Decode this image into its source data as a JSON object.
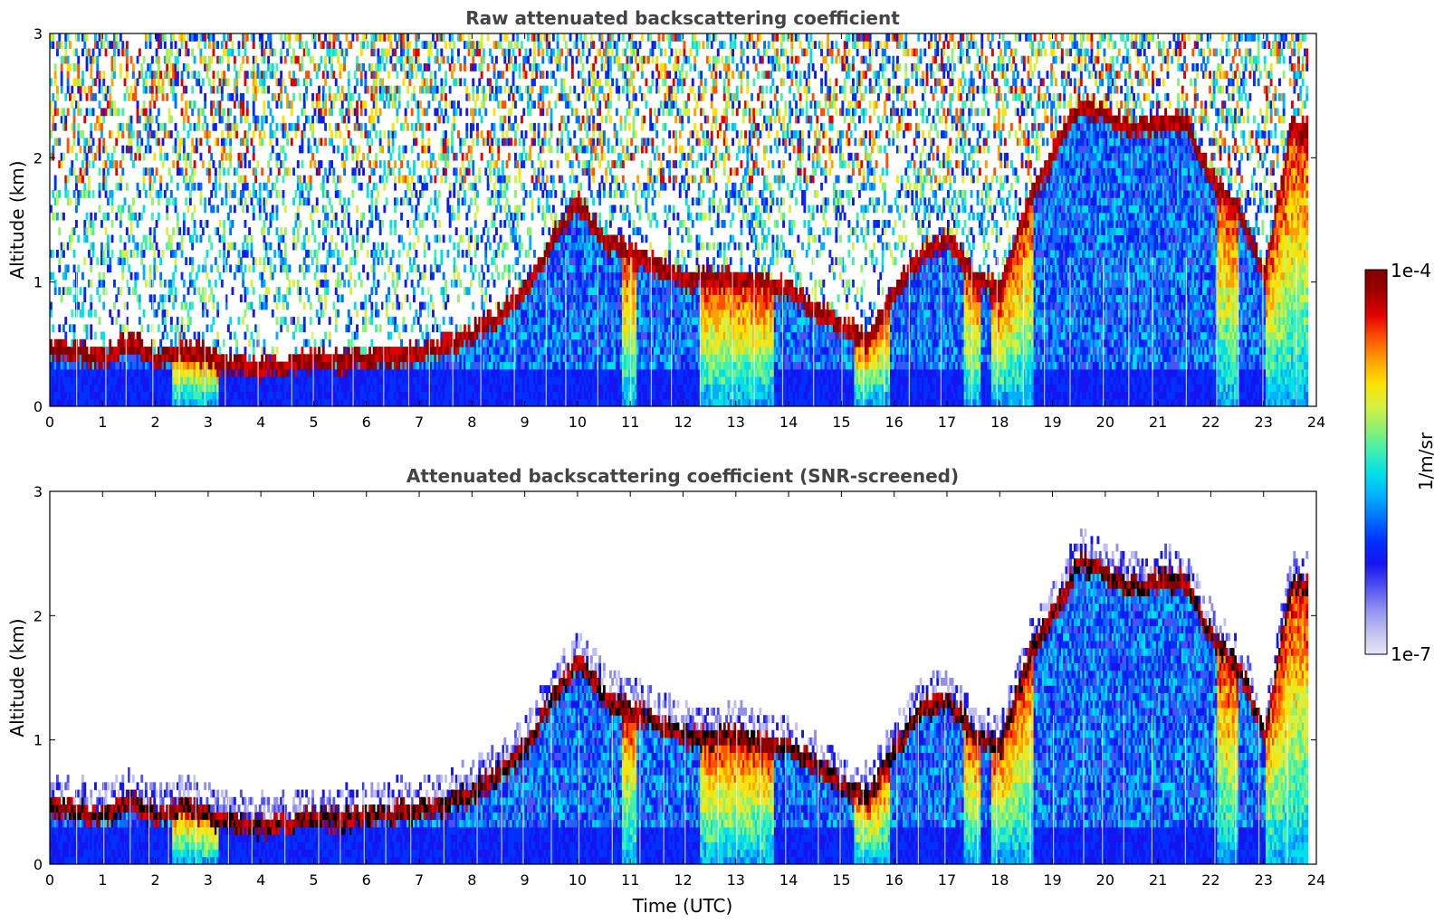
{
  "chart_data": [
    {
      "type": "heatmap",
      "title": "Raw attenuated backscattering coefficient",
      "xlabel": "",
      "ylabel": "Altitude (km)",
      "xlim": [
        0,
        24
      ],
      "ylim": [
        0,
        3
      ],
      "xticks": [
        0,
        1,
        2,
        3,
        4,
        5,
        6,
        7,
        8,
        9,
        10,
        11,
        12,
        13,
        14,
        15,
        16,
        17,
        18,
        19,
        20,
        21,
        22,
        23,
        24
      ],
      "yticks": [
        0,
        1,
        2,
        3
      ],
      "screened": false,
      "layer_height_km": [
        [
          0,
          0.45
        ],
        [
          0.5,
          0.4
        ],
        [
          1,
          0.35
        ],
        [
          1.5,
          0.5
        ],
        [
          2,
          0.35
        ],
        [
          2.5,
          0.45
        ],
        [
          3,
          0.35
        ],
        [
          3.5,
          0.3
        ],
        [
          4,
          0.28
        ],
        [
          4.5,
          0.3
        ],
        [
          5,
          0.35
        ],
        [
          5.5,
          0.33
        ],
        [
          6,
          0.35
        ],
        [
          6.5,
          0.38
        ],
        [
          7,
          0.4
        ],
        [
          7.5,
          0.45
        ],
        [
          8,
          0.55
        ],
        [
          8.5,
          0.7
        ],
        [
          9,
          0.9
        ],
        [
          9.5,
          1.3
        ],
        [
          10,
          1.6
        ],
        [
          10.5,
          1.3
        ],
        [
          11,
          1.2
        ],
        [
          11.5,
          1.1
        ],
        [
          12,
          1.0
        ],
        [
          13,
          1.0
        ],
        [
          14,
          0.9
        ],
        [
          15,
          0.6
        ],
        [
          15.5,
          0.5
        ],
        [
          16,
          0.9
        ],
        [
          16.5,
          1.2
        ],
        [
          17,
          1.3
        ],
        [
          17.5,
          1.0
        ],
        [
          18,
          0.9
        ],
        [
          18.5,
          1.6
        ],
        [
          19,
          2.0
        ],
        [
          19.5,
          2.4
        ],
        [
          20,
          2.3
        ],
        [
          20.5,
          2.2
        ],
        [
          21,
          2.25
        ],
        [
          21.5,
          2.25
        ],
        [
          22,
          1.8
        ],
        [
          22.5,
          1.55
        ],
        [
          23,
          1.0
        ],
        [
          23.5,
          2.2
        ],
        [
          23.8,
          2.2
        ]
      ],
      "shallow_regions_utc": [
        [
          2.3,
          3.2
        ],
        [
          10.8,
          11.1
        ],
        [
          12.3,
          13.7
        ],
        [
          15.2,
          15.9
        ],
        [
          17.3,
          17.6
        ],
        [
          17.8,
          18.6
        ],
        [
          22.1,
          22.5
        ],
        [
          23.0,
          23.8
        ]
      ]
    },
    {
      "type": "heatmap",
      "title": "Attenuated backscattering coefficient (SNR-screened)",
      "xlabel": "Time (UTC)",
      "ylabel": "Altitude (km)",
      "xlim": [
        0,
        24
      ],
      "ylim": [
        0,
        3
      ],
      "xticks": [
        0,
        1,
        2,
        3,
        4,
        5,
        6,
        7,
        8,
        9,
        10,
        11,
        12,
        13,
        14,
        15,
        16,
        17,
        18,
        19,
        20,
        21,
        22,
        23,
        24
      ],
      "yticks": [
        0,
        1,
        2,
        3
      ],
      "screened": true,
      "layer_height_km": [
        [
          0,
          0.45
        ],
        [
          0.5,
          0.4
        ],
        [
          1,
          0.35
        ],
        [
          1.5,
          0.5
        ],
        [
          2,
          0.35
        ],
        [
          2.5,
          0.45
        ],
        [
          3,
          0.35
        ],
        [
          3.5,
          0.3
        ],
        [
          4,
          0.28
        ],
        [
          4.5,
          0.3
        ],
        [
          5,
          0.35
        ],
        [
          5.5,
          0.33
        ],
        [
          6,
          0.35
        ],
        [
          6.5,
          0.38
        ],
        [
          7,
          0.4
        ],
        [
          7.5,
          0.45
        ],
        [
          8,
          0.55
        ],
        [
          8.5,
          0.7
        ],
        [
          9,
          0.9
        ],
        [
          9.5,
          1.3
        ],
        [
          10,
          1.6
        ],
        [
          10.5,
          1.3
        ],
        [
          11,
          1.2
        ],
        [
          11.5,
          1.1
        ],
        [
          12,
          1.0
        ],
        [
          13,
          1.0
        ],
        [
          14,
          0.9
        ],
        [
          15,
          0.6
        ],
        [
          15.5,
          0.5
        ],
        [
          16,
          0.9
        ],
        [
          16.5,
          1.2
        ],
        [
          17,
          1.3
        ],
        [
          17.5,
          1.0
        ],
        [
          18,
          0.9
        ],
        [
          18.5,
          1.6
        ],
        [
          19,
          2.0
        ],
        [
          19.5,
          2.4
        ],
        [
          20,
          2.3
        ],
        [
          20.5,
          2.2
        ],
        [
          21,
          2.25
        ],
        [
          21.5,
          2.25
        ],
        [
          22,
          1.8
        ],
        [
          22.5,
          1.55
        ],
        [
          23,
          1.0
        ],
        [
          23.5,
          2.2
        ],
        [
          23.8,
          2.2
        ]
      ],
      "shallow_regions_utc": [
        [
          2.3,
          3.2
        ],
        [
          10.8,
          11.1
        ],
        [
          12.3,
          13.7
        ],
        [
          15.2,
          15.9
        ],
        [
          17.3,
          17.6
        ],
        [
          17.8,
          18.6
        ],
        [
          22.1,
          22.5
        ],
        [
          23.0,
          23.8
        ]
      ]
    }
  ],
  "colorbar": {
    "label": "1/m/sr",
    "max_label": "1e-4",
    "min_label": "1e-7",
    "colors": [
      "#e6e6f7",
      "#c0c0f0",
      "#8f8ff0",
      "#5050f0",
      "#1515f0",
      "#0030ff",
      "#0070ff",
      "#00b0ff",
      "#00e0e8",
      "#40f0b0",
      "#90f070",
      "#d8f040",
      "#ffe000",
      "#ffa000",
      "#ff5000",
      "#e00000",
      "#a00000",
      "#800000"
    ]
  }
}
